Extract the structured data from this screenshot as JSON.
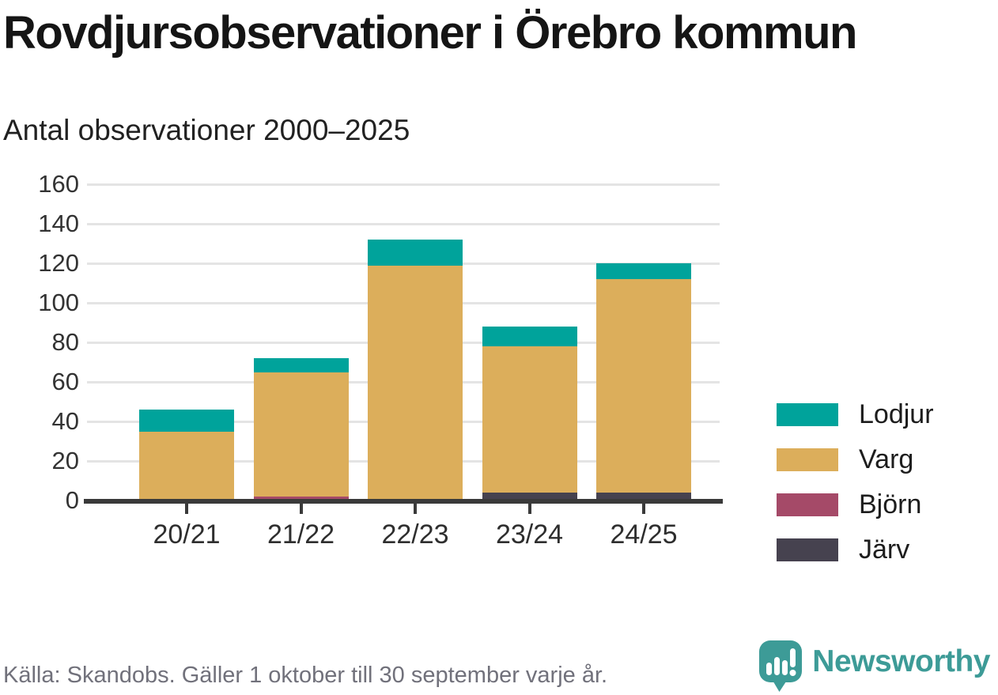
{
  "header": {
    "title": "Rovdjursobservationer i Örebro kommun",
    "subtitle": "Antal observationer 2000–2025"
  },
  "chart_data": {
    "type": "bar",
    "stacked": true,
    "title": "Rovdjursobservationer i Örebro kommun",
    "subtitle": "Antal observationer 2000–2025",
    "categories": [
      "20/21",
      "21/22",
      "22/23",
      "23/24",
      "24/25"
    ],
    "series": [
      {
        "name": "Järv",
        "color": "#46424f",
        "values": [
          0,
          0,
          1,
          4,
          4
        ]
      },
      {
        "name": "Björn",
        "color": "#a54a68",
        "values": [
          1,
          2,
          0,
          0,
          0
        ]
      },
      {
        "name": "Varg",
        "color": "#dcae5b",
        "values": [
          34,
          63,
          118,
          74,
          108
        ]
      },
      {
        "name": "Lodjur",
        "color": "#00a39b",
        "values": [
          11,
          7,
          13,
          10,
          8
        ]
      }
    ],
    "stack_totals": [
      46,
      72,
      132,
      88,
      120
    ],
    "xlabel": "",
    "ylabel": "",
    "ylim": [
      0,
      160
    ],
    "yticks": [
      0,
      20,
      40,
      60,
      80,
      100,
      120,
      140,
      160
    ],
    "grid": true,
    "legend_position": "right"
  },
  "legend": {
    "items": [
      {
        "label": "Lodjur"
      },
      {
        "label": "Varg"
      },
      {
        "label": "Björn"
      },
      {
        "label": "Järv"
      }
    ]
  },
  "footer": {
    "source": "Källa: Skandobs. Gäller 1 oktober till 30 september varje år.",
    "brand": "Newsworthy"
  },
  "icons": {
    "logo": "newsworthy-speech-bubble-chart-icon"
  },
  "colors": {
    "accent_teal": "#00a39b",
    "gold": "#dcae5b",
    "maroon": "#a54a68",
    "dark_slate": "#46424f",
    "brand_teal": "#3d9b97",
    "grid": "#e4e4e4",
    "axis": "#3a3a3a",
    "source_text": "#71717b"
  }
}
